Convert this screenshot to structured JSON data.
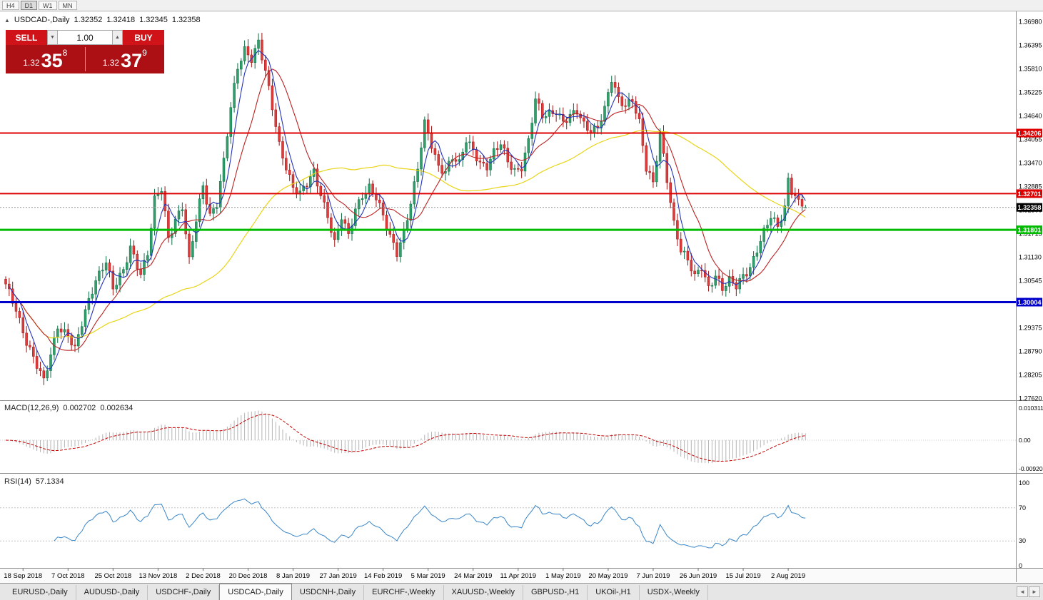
{
  "timeframe_toolbar": {
    "buttons": [
      {
        "label": "H4",
        "active": false
      },
      {
        "label": "D1",
        "active": true
      },
      {
        "label": "W1",
        "active": false
      },
      {
        "label": "MN",
        "active": false
      }
    ]
  },
  "icons": {
    "direction_up": "▲",
    "spinner_up": "▲",
    "spinner_down": "▼",
    "tab_scroll_left": "◄",
    "tab_scroll_right": "►"
  },
  "chart_header": {
    "symbol": "USDCAD-,Daily",
    "open": "1.32352",
    "high": "1.32418",
    "low": "1.32345",
    "close": "1.32358"
  },
  "trade_panel": {
    "sell_label": "SELL",
    "buy_label": "BUY",
    "volume": "1.00",
    "sell_price": {
      "base": "1.32",
      "pips": "35",
      "pipette": "8"
    },
    "buy_price": {
      "base": "1.32",
      "pips": "37",
      "pipette": "9"
    },
    "colors": {
      "button": "#cf1318",
      "panel": "#ac0f14"
    }
  },
  "indicators": {
    "macd": {
      "name": "MACD(12,26,9)",
      "value_main": "0.002702",
      "value_signal": "0.002634",
      "axis": [
        {
          "v": 0.010311,
          "label": "0.010311"
        },
        {
          "v": 0,
          "label": "0.00"
        },
        {
          "v": -0.0092,
          "label": "-0.00920"
        }
      ]
    },
    "rsi": {
      "name": "RSI(14)",
      "value": "57.1334",
      "axis": [
        {
          "v": 100,
          "label": "100"
        },
        {
          "v": 70,
          "label": "70"
        },
        {
          "v": 30,
          "label": "30"
        },
        {
          "v": 0,
          "label": "0"
        }
      ],
      "levels": [
        70,
        30
      ]
    }
  },
  "chart_data": {
    "type": "candlestick",
    "symbol": "USDCAD",
    "timeframe": "Daily",
    "bar_count": 232,
    "last_bar": {
      "open": 1.32352,
      "high": 1.32418,
      "low": 1.32345,
      "close": 1.32358
    },
    "current_price": {
      "value": 1.32358,
      "label": "1.32358"
    },
    "price_axis": {
      "top": 1.3698,
      "step": 0.00585,
      "labels": [
        "1.36980",
        "1.36395",
        "1.35810",
        "1.35225",
        "1.34640",
        "1.34055",
        "1.33470",
        "1.32885",
        "1.32300",
        "1.31715",
        "1.31130",
        "1.30545",
        "1.29960",
        "1.29375",
        "1.28790",
        "1.28205",
        "1.27620"
      ]
    },
    "levels": [
      {
        "price": 1.34206,
        "label": "1.34206",
        "color": "#dd0000",
        "width": 2
      },
      {
        "price": 1.32701,
        "label": "1.32701",
        "color": "#dd0000",
        "width": 2
      },
      {
        "price": 1.31801,
        "label": "1.31801",
        "color": "#00bb00",
        "width": 3
      },
      {
        "price": 1.30004,
        "label": "1.30004",
        "color": "#0000cc",
        "width": 3
      }
    ],
    "moving_averages": [
      {
        "period": 5,
        "color": "#2233bb"
      },
      {
        "period": 13,
        "color": "#bb2222"
      },
      {
        "period": 55,
        "color": "#e8d416"
      }
    ],
    "colors": {
      "up": "#2fa06a",
      "up_border": "#0b6b42",
      "down": "#e03c3c",
      "down_border": "#a01212",
      "macd_hist": "#b4b4b4",
      "macd_signal": "#c00000",
      "rsi_line": "#3a86c8",
      "level_dash": "#c0c0c0"
    },
    "price_path": [
      [
        0,
        1.304
      ],
      [
        3,
        1.2985
      ],
      [
        6,
        1.2905
      ],
      [
        9,
        1.284
      ],
      [
        11,
        1.28
      ],
      [
        13,
        1.287
      ],
      [
        15,
        1.2945
      ],
      [
        18,
        1.292
      ],
      [
        20,
        1.288
      ],
      [
        23,
        1.2975
      ],
      [
        26,
        1.306
      ],
      [
        29,
        1.3105
      ],
      [
        31,
        1.303
      ],
      [
        34,
        1.3075
      ],
      [
        36,
        1.314
      ],
      [
        39,
        1.3075
      ],
      [
        41,
        1.312
      ],
      [
        43,
        1.325
      ],
      [
        45,
        1.328
      ],
      [
        47,
        1.316
      ],
      [
        49,
        1.321
      ],
      [
        51,
        1.324
      ],
      [
        53,
        1.31
      ],
      [
        55,
        1.32
      ],
      [
        57,
        1.329
      ],
      [
        59,
        1.322
      ],
      [
        61,
        1.325
      ],
      [
        63,
        1.335
      ],
      [
        65,
        1.348
      ],
      [
        67,
        1.358
      ],
      [
        69,
        1.363
      ],
      [
        71,
        1.361
      ],
      [
        73,
        1.365
      ],
      [
        75,
        1.357
      ],
      [
        77,
        1.348
      ],
      [
        79,
        1.339
      ],
      [
        81,
        1.334
      ],
      [
        83,
        1.329
      ],
      [
        85,
        1.327
      ],
      [
        87,
        1.329
      ],
      [
        89,
        1.332
      ],
      [
        91,
        1.327
      ],
      [
        93,
        1.322
      ],
      [
        95,
        1.315
      ],
      [
        97,
        1.321
      ],
      [
        99,
        1.316
      ],
      [
        101,
        1.323
      ],
      [
        103,
        1.327
      ],
      [
        105,
        1.329
      ],
      [
        107,
        1.326
      ],
      [
        109,
        1.321
      ],
      [
        111,
        1.316
      ],
      [
        113,
        1.3125
      ],
      [
        115,
        1.318
      ],
      [
        117,
        1.325
      ],
      [
        119,
        1.333
      ],
      [
        121,
        1.344
      ],
      [
        123,
        1.339
      ],
      [
        125,
        1.334
      ],
      [
        127,
        1.333
      ],
      [
        129,
        1.336
      ],
      [
        131,
        1.334
      ],
      [
        133,
        1.34
      ],
      [
        135,
        1.338
      ],
      [
        137,
        1.335
      ],
      [
        139,
        1.334
      ],
      [
        141,
        1.337
      ],
      [
        143,
        1.339
      ],
      [
        145,
        1.335
      ],
      [
        147,
        1.333
      ],
      [
        149,
        1.334
      ],
      [
        151,
        1.34
      ],
      [
        153,
        1.35
      ],
      [
        155,
        1.346
      ],
      [
        157,
        1.347
      ],
      [
        159,
        1.348
      ],
      [
        161,
        1.345
      ],
      [
        163,
        1.346
      ],
      [
        165,
        1.347
      ],
      [
        167,
        1.344
      ],
      [
        169,
        1.343
      ],
      [
        171,
        1.344
      ],
      [
        173,
        1.348
      ],
      [
        175,
        1.355
      ],
      [
        177,
        1.35
      ],
      [
        179,
        1.349
      ],
      [
        181,
        1.351
      ],
      [
        183,
        1.345
      ],
      [
        185,
        1.333
      ],
      [
        187,
        1.329
      ],
      [
        189,
        1.342
      ],
      [
        191,
        1.331
      ],
      [
        193,
        1.32
      ],
      [
        195,
        1.313
      ],
      [
        197,
        1.31
      ],
      [
        199,
        1.306
      ],
      [
        201,
        1.309
      ],
      [
        203,
        1.304
      ],
      [
        205,
        1.307
      ],
      [
        207,
        1.303
      ],
      [
        209,
        1.305
      ],
      [
        211,
        1.304
      ],
      [
        213,
        1.307
      ],
      [
        215,
        1.309
      ],
      [
        217,
        1.313
      ],
      [
        219,
        1.317
      ],
      [
        221,
        1.321
      ],
      [
        223,
        1.319
      ],
      [
        225,
        1.324
      ],
      [
        226,
        1.331
      ],
      [
        227,
        1.328
      ],
      [
        229,
        1.3245
      ],
      [
        231,
        1.3236
      ]
    ],
    "date_labels": [
      {
        "bar": 5,
        "label": "18 Sep 2018"
      },
      {
        "bar": 18,
        "label": "7 Oct 2018"
      },
      {
        "bar": 31,
        "label": "25 Oct 2018"
      },
      {
        "bar": 44,
        "label": "13 Nov 2018"
      },
      {
        "bar": 57,
        "label": "2 Dec 2018"
      },
      {
        "bar": 70,
        "label": "20 Dec 2018"
      },
      {
        "bar": 83,
        "label": "8 Jan 2019"
      },
      {
        "bar": 96,
        "label": "27 Jan 2019"
      },
      {
        "bar": 109,
        "label": "14 Feb 2019"
      },
      {
        "bar": 122,
        "label": "5 Mar 2019"
      },
      {
        "bar": 135,
        "label": "24 Mar 2019"
      },
      {
        "bar": 148,
        "label": "11 Apr 2019"
      },
      {
        "bar": 161,
        "label": "1 May 2019"
      },
      {
        "bar": 174,
        "label": "20 May 2019"
      },
      {
        "bar": 187,
        "label": "7 Jun 2019"
      },
      {
        "bar": 200,
        "label": "26 Jun 2019"
      },
      {
        "bar": 213,
        "label": "15 Jul 2019"
      },
      {
        "bar": 226,
        "label": "2 Aug 2019"
      }
    ]
  },
  "tab_bar": {
    "tabs": [
      {
        "label": "EURUSD-,Daily",
        "active": false
      },
      {
        "label": "AUDUSD-,Daily",
        "active": false
      },
      {
        "label": "USDCHF-,Daily",
        "active": false
      },
      {
        "label": "USDCAD-,Daily",
        "active": true
      },
      {
        "label": "USDCNH-,Daily",
        "active": false
      },
      {
        "label": "EURCHF-,Weekly",
        "active": false
      },
      {
        "label": "XAUUSD-,Weekly",
        "active": false
      },
      {
        "label": "GBPUSD-,H1",
        "active": false
      },
      {
        "label": "UKOil-,H1",
        "active": false
      },
      {
        "label": "USDX-,Weekly",
        "active": false
      }
    ]
  }
}
